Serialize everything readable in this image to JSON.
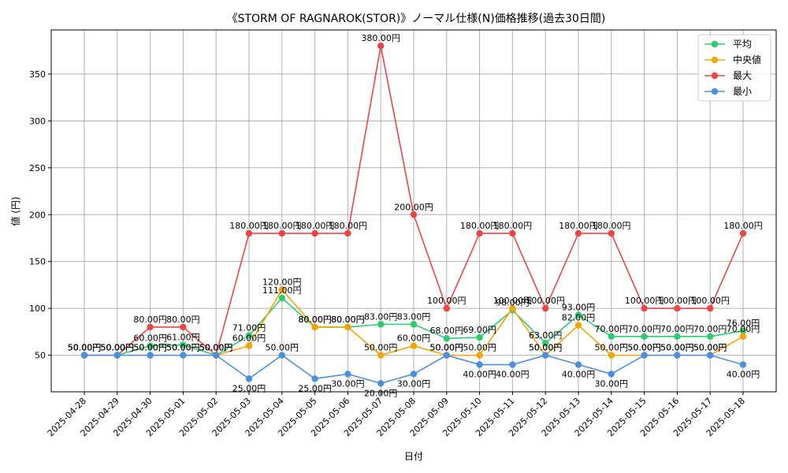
{
  "chart_data": {
    "type": "line",
    "title": "《STORM OF RAGNAROK(STOR)》ノーマル仕様(N)価格推移(過去30日間)",
    "xlabel": "日付",
    "ylabel": "値 (円)",
    "ylim": [
      11,
      397
    ],
    "yticks": [
      50,
      100,
      150,
      200,
      250,
      300,
      350
    ],
    "grid": true,
    "legend_position": "top-right",
    "value_suffix": "円",
    "categories": [
      "2025-04-28",
      "2025-04-29",
      "2025-04-30",
      "2025-05-01",
      "2025-05-02",
      "2025-05-03",
      "2025-05-04",
      "2025-05-05",
      "2025-05-06",
      "2025-05-07",
      "2025-05-08",
      "2025-05-09",
      "2025-05-10",
      "2025-05-11",
      "2025-05-12",
      "2025-05-13",
      "2025-05-14",
      "2025-05-15",
      "2025-05-16",
      "2025-05-17",
      "2025-05-18"
    ],
    "series": [
      {
        "name": "平均",
        "color": "#2ecc71",
        "values": [
          50,
          50,
          60,
          61,
          50,
          71,
          111,
          80,
          80,
          83,
          83,
          68,
          69,
          98,
          63,
          93,
          70,
          70,
          70,
          70,
          76
        ]
      },
      {
        "name": "中央値",
        "color": "#f5a300",
        "values": [
          50,
          50,
          50,
          50,
          50,
          60,
          120,
          80,
          80,
          50,
          60,
          50,
          50,
          100,
          50,
          82,
          50,
          50,
          50,
          50,
          70
        ]
      },
      {
        "name": "最大",
        "color": "#ef4444",
        "values": [
          50,
          50,
          80,
          80,
          50,
          180,
          180,
          180,
          180,
          380,
          200,
          100,
          180,
          180,
          100,
          180,
          180,
          100,
          100,
          100,
          180
        ]
      },
      {
        "name": "最小",
        "color": "#4a90e2",
        "values": [
          50,
          50,
          50,
          50,
          50,
          25,
          50,
          25,
          30,
          20,
          30,
          50,
          40,
          40,
          50,
          40,
          30,
          50,
          50,
          50,
          40
        ]
      }
    ]
  }
}
